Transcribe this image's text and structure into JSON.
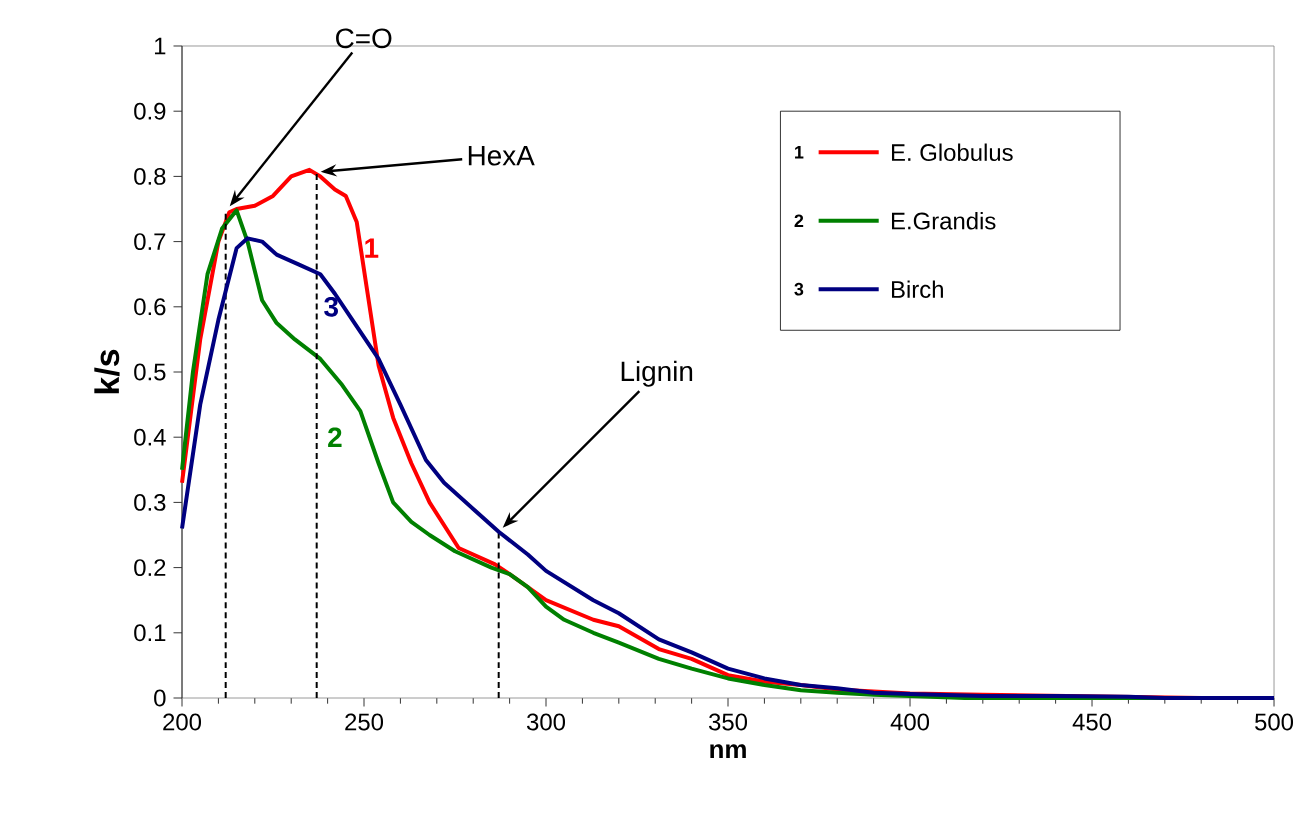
{
  "chart_data": {
    "type": "line",
    "xlabel": "nm",
    "ylabel": "k/s",
    "xlim": [
      200,
      500
    ],
    "xticks": [
      200,
      250,
      300,
      350,
      400,
      450,
      500
    ],
    "ylim": [
      0,
      1
    ],
    "yticks": [
      0,
      0.1,
      0.2,
      0.3,
      0.4,
      0.5,
      0.6,
      0.7,
      0.8,
      0.9,
      1
    ],
    "grid": false,
    "legend": "top right",
    "marker": "none",
    "line_style": "solid",
    "series": [
      {
        "name": "E. Globulus",
        "color": "#ff0000",
        "x": [
          200,
          205,
          210,
          213,
          215,
          220,
          225,
          230,
          235,
          238,
          242,
          245,
          248,
          251,
          254,
          258,
          263,
          268,
          276,
          286,
          290,
          295,
          300,
          313,
          320,
          331,
          340,
          350,
          360,
          370,
          380,
          390,
          400,
          420,
          450,
          460,
          480,
          500
        ],
        "values": [
          0.33,
          0.55,
          0.7,
          0.745,
          0.75,
          0.755,
          0.77,
          0.8,
          0.81,
          0.8,
          0.78,
          0.77,
          0.73,
          0.62,
          0.51,
          0.43,
          0.36,
          0.3,
          0.23,
          0.205,
          0.19,
          0.17,
          0.15,
          0.12,
          0.11,
          0.075,
          0.06,
          0.035,
          0.025,
          0.02,
          0.013,
          0.01,
          0.007,
          0.005,
          null,
          null,
          0,
          0
        ]
      },
      {
        "name": "E.Grandis",
        "color": "#008000",
        "x": [
          200,
          203,
          207,
          211,
          215,
          218,
          222,
          226,
          231,
          238,
          244,
          249,
          254,
          258,
          263,
          268,
          275,
          285,
          290,
          295,
          300,
          305,
          313,
          320,
          331,
          340,
          350,
          360,
          370,
          380,
          390,
          400,
          415,
          500
        ],
        "values": [
          0.35,
          0.5,
          0.65,
          0.72,
          0.748,
          0.7,
          0.61,
          0.575,
          0.55,
          0.52,
          0.48,
          0.44,
          0.36,
          0.3,
          0.27,
          0.25,
          0.225,
          0.2,
          0.19,
          0.17,
          0.14,
          0.12,
          0.1,
          0.085,
          0.06,
          0.045,
          0.03,
          0.02,
          0.012,
          0.008,
          0.005,
          0.003,
          0,
          0
        ]
      },
      {
        "type": "line",
        "color": "#000000",
        "line_style": "dashed",
        "x": [
          212,
          212
        ],
        "values": [
          0,
          0.748
        ]
      },
      {
        "type": "line",
        "color": "#000000",
        "line_style": "dashed",
        "x": [
          237,
          237
        ],
        "values": [
          0,
          0.807
        ]
      },
      {
        "type": "line",
        "color": "#000000",
        "line_style": "dashed",
        "x": [
          287,
          287
        ],
        "values": [
          0,
          0.255
        ]
      },
      {
        "name": "Birch",
        "color": "#000080",
        "x": [
          200,
          205,
          210,
          215,
          218,
          222,
          226,
          232,
          238,
          242,
          248,
          254,
          260,
          267,
          272,
          280,
          287,
          295,
          300,
          313,
          320,
          331,
          340,
          350,
          360,
          370,
          380,
          390,
          400,
          420,
          440,
          460,
          470,
          500
        ],
        "values": [
          0.26,
          0.45,
          0.58,
          0.69,
          0.705,
          0.7,
          0.68,
          0.665,
          0.65,
          0.62,
          0.57,
          0.52,
          0.45,
          0.365,
          0.33,
          0.29,
          0.255,
          0.22,
          0.195,
          0.15,
          0.13,
          0.09,
          0.07,
          0.045,
          0.03,
          0.02,
          0.015,
          0.008,
          0.006,
          0.003,
          0.003,
          0.002,
          0,
          0
        ]
      }
    ],
    "annotations": [
      {
        "text": "C=O",
        "x": 212,
        "y": 0.748
      },
      {
        "text": "HexA",
        "x": 237,
        "y": 0.807
      },
      {
        "text": "Lignin",
        "x": 287,
        "y": 0.255
      },
      "1",
      "2",
      "3"
    ]
  }
}
